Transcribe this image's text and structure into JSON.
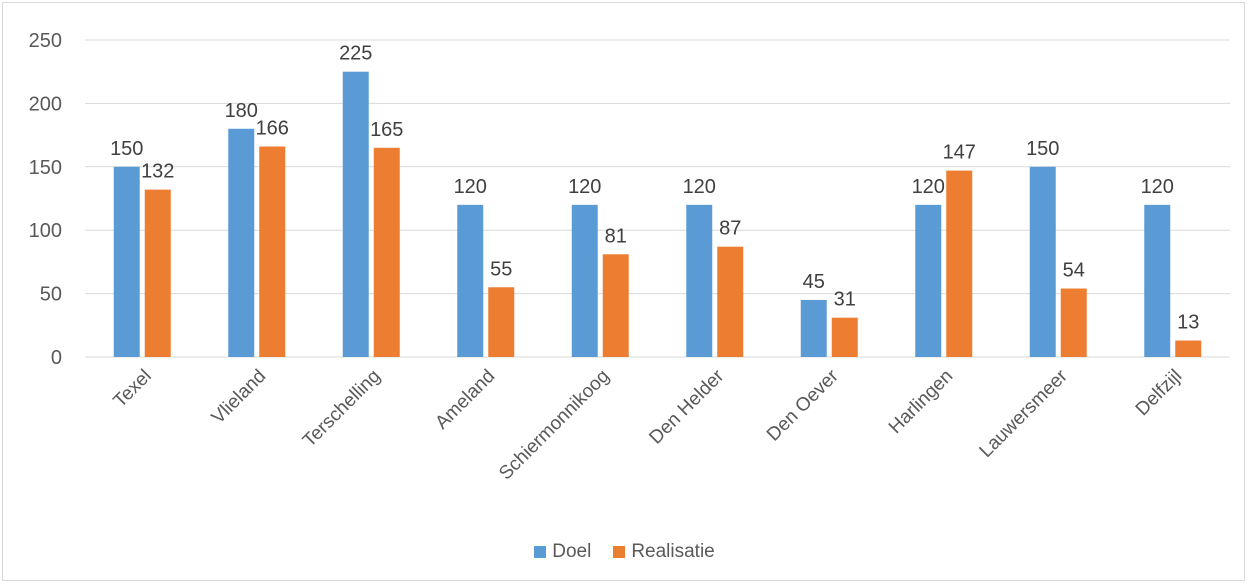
{
  "chart_data": {
    "type": "bar",
    "title": "",
    "xlabel": "",
    "ylabel": "",
    "ylim": [
      0,
      250
    ],
    "y_ticks": [
      0,
      50,
      100,
      150,
      200,
      250
    ],
    "grid": true,
    "legend_position": "bottom",
    "categories": [
      "Texel",
      "Vlieland",
      "Terschelling",
      "Ameland",
      "Schiermonnikoog",
      "Den Helder",
      "Den Oever",
      "Harlingen",
      "Lauwersmeer",
      "Delfzijl"
    ],
    "series": [
      {
        "name": "Doel",
        "color": "#5b9bd5",
        "values": [
          150,
          180,
          225,
          120,
          120,
          120,
          45,
          120,
          150,
          120
        ]
      },
      {
        "name": "Realisatie",
        "color": "#ed7d31",
        "values": [
          132,
          166,
          165,
          55,
          81,
          87,
          31,
          147,
          54,
          13
        ]
      }
    ]
  }
}
